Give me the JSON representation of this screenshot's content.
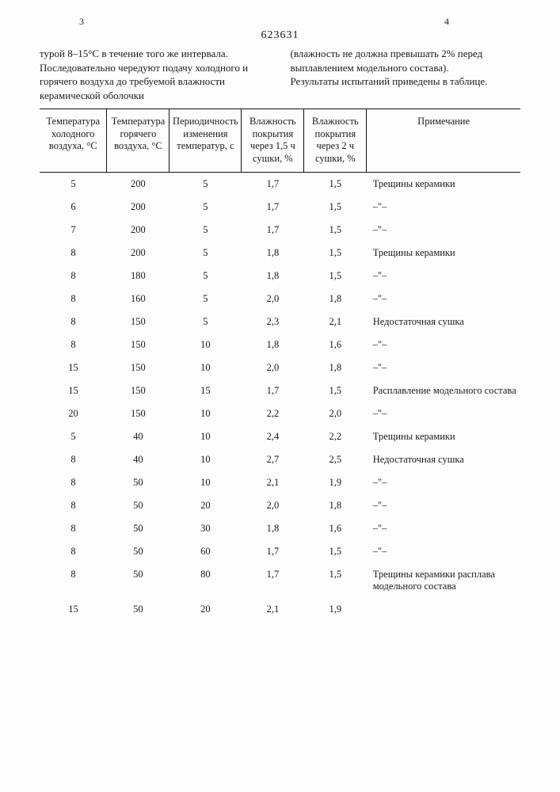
{
  "page_left_num": "3",
  "page_right_num": "4",
  "doc_number": "623631",
  "intro_left": "турой 8–15°C в течение того же интервала. Последовательно чередуют подачу холодного и горячего воздуха до требуемой влажности керамической оболочки",
  "intro_right_1": "(влажность не должна превышать 2% перед выплавлением модельного состава).",
  "intro_right_2": "Результаты испытаний приведены в таблице.",
  "columns": [
    "Температура холодного воздуха, °C",
    "Температура горячего воздуха, °C",
    "Периодичность изменения температур, с",
    "Влажность покрытия через 1,5 ч сушки, %",
    "Влажность покрытия через 2 ч сушки, %",
    "Примечание"
  ],
  "rows": [
    [
      "5",
      "200",
      "5",
      "1,7",
      "1,5",
      "Трещины керамики"
    ],
    [
      "6",
      "200",
      "5",
      "1,7",
      "1,5",
      "–\"–"
    ],
    [
      "7",
      "200",
      "5",
      "1,7",
      "1,5",
      "–\"–"
    ],
    [
      "8",
      "200",
      "5",
      "1,8",
      "1,5",
      "Трещины керамики"
    ],
    [
      "8",
      "180",
      "5",
      "1,8",
      "1,5",
      "–\"–"
    ],
    [
      "8",
      "160",
      "5",
      "2,0",
      "1,8",
      "–\"–"
    ],
    [
      "8",
      "150",
      "5",
      "2,3",
      "2,1",
      "Недостаточная сушка"
    ],
    [
      "8",
      "150",
      "10",
      "1,8",
      "1,6",
      "–\"–"
    ],
    [
      "15",
      "150",
      "10",
      "2,0",
      "1,8",
      "–\"–"
    ],
    [
      "15",
      "150",
      "15",
      "1,7",
      "1,5",
      "Расплавление модельного состава"
    ],
    [
      "20",
      "150",
      "10",
      "2,2",
      "2,0",
      "–\"–"
    ],
    [
      "5",
      "40",
      "10",
      "2,4",
      "2,2",
      "Трещины керамики"
    ],
    [
      "8",
      "40",
      "10",
      "2,7",
      "2,5",
      "Недостаточная сушка"
    ],
    [
      "8",
      "50",
      "10",
      "2,1",
      "1,9",
      "–\"–"
    ],
    [
      "8",
      "50",
      "20",
      "2,0",
      "1,8",
      "–\"–"
    ],
    [
      "8",
      "50",
      "30",
      "1,8",
      "1,6",
      "–\"–"
    ],
    [
      "8",
      "50",
      "60",
      "1,7",
      "1,5",
      "–\"–"
    ],
    [
      "8",
      "50",
      "80",
      "1,7",
      "1,5",
      "Трещины керамики расплава модельного состава"
    ],
    [
      "15",
      "50",
      "20",
      "2,1",
      "1,9",
      ""
    ]
  ],
  "col_widths": [
    "14%",
    "13%",
    "15%",
    "13%",
    "13%",
    "32%"
  ]
}
